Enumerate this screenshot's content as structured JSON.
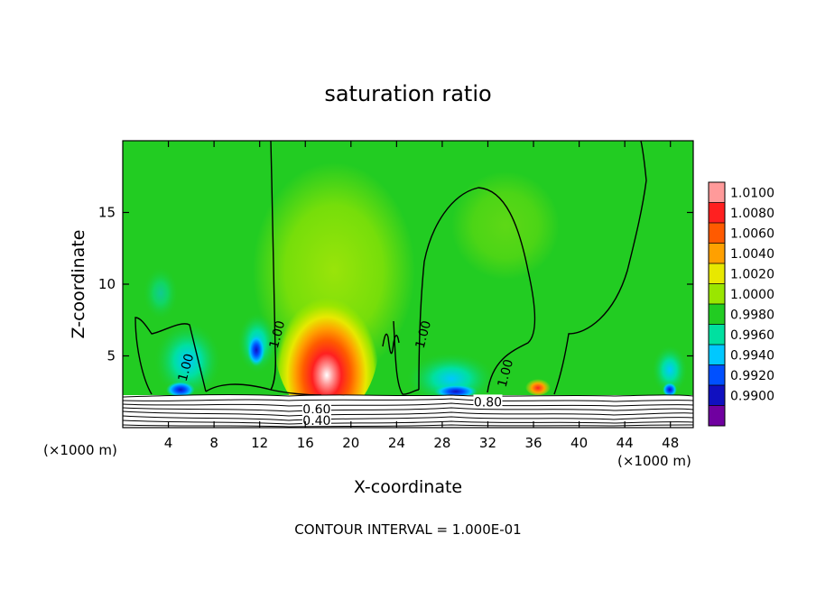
{
  "chart_data": {
    "type": "heatmap",
    "title": "saturation ratio",
    "xlabel": "X-coordinate",
    "ylabel": "Z-coordinate",
    "x_unit_left": "(×1000 m)",
    "x_unit_right": "(×1000 m)",
    "footer": "CONTOUR INTERVAL = 1.000E-01",
    "xlim": [
      0,
      50
    ],
    "ylim": [
      0,
      20
    ],
    "x_ticks": [
      4,
      8,
      12,
      16,
      20,
      24,
      28,
      32,
      36,
      40,
      44,
      48
    ],
    "y_ticks": [
      5,
      10,
      15
    ],
    "colorbar": {
      "labels": [
        "1.0100",
        "1.0080",
        "1.0060",
        "1.0040",
        "1.0020",
        "1.0000",
        "0.9980",
        "0.9960",
        "0.9940",
        "0.9920",
        "0.9900"
      ],
      "values": [
        1.01,
        1.008,
        1.006,
        1.004,
        1.002,
        1.0,
        0.998,
        0.996,
        0.994,
        0.992,
        0.99
      ],
      "colors": [
        "#ff9a9a",
        "#ff2020",
        "#ff5a00",
        "#ffa000",
        "#e8e800",
        "#9ae600",
        "#22cc22",
        "#00e0a0",
        "#00c8ff",
        "#0050ff",
        "#1010c0",
        "#7000a0"
      ]
    },
    "contour_labels": [
      {
        "text": "1.00",
        "x": 5.5,
        "y": 4.2
      },
      {
        "text": "1.00",
        "x": 13.5,
        "y": 6.5
      },
      {
        "text": "1.00",
        "x": 26.3,
        "y": 6.5
      },
      {
        "text": "1.00",
        "x": 33.5,
        "y": 3.8
      },
      {
        "text": "0.80",
        "x": 32.0,
        "y": 1.8
      },
      {
        "text": "0.60",
        "x": 17.0,
        "y": 1.3
      },
      {
        "text": "0.40",
        "x": 17.0,
        "y": 0.5
      }
    ]
  }
}
